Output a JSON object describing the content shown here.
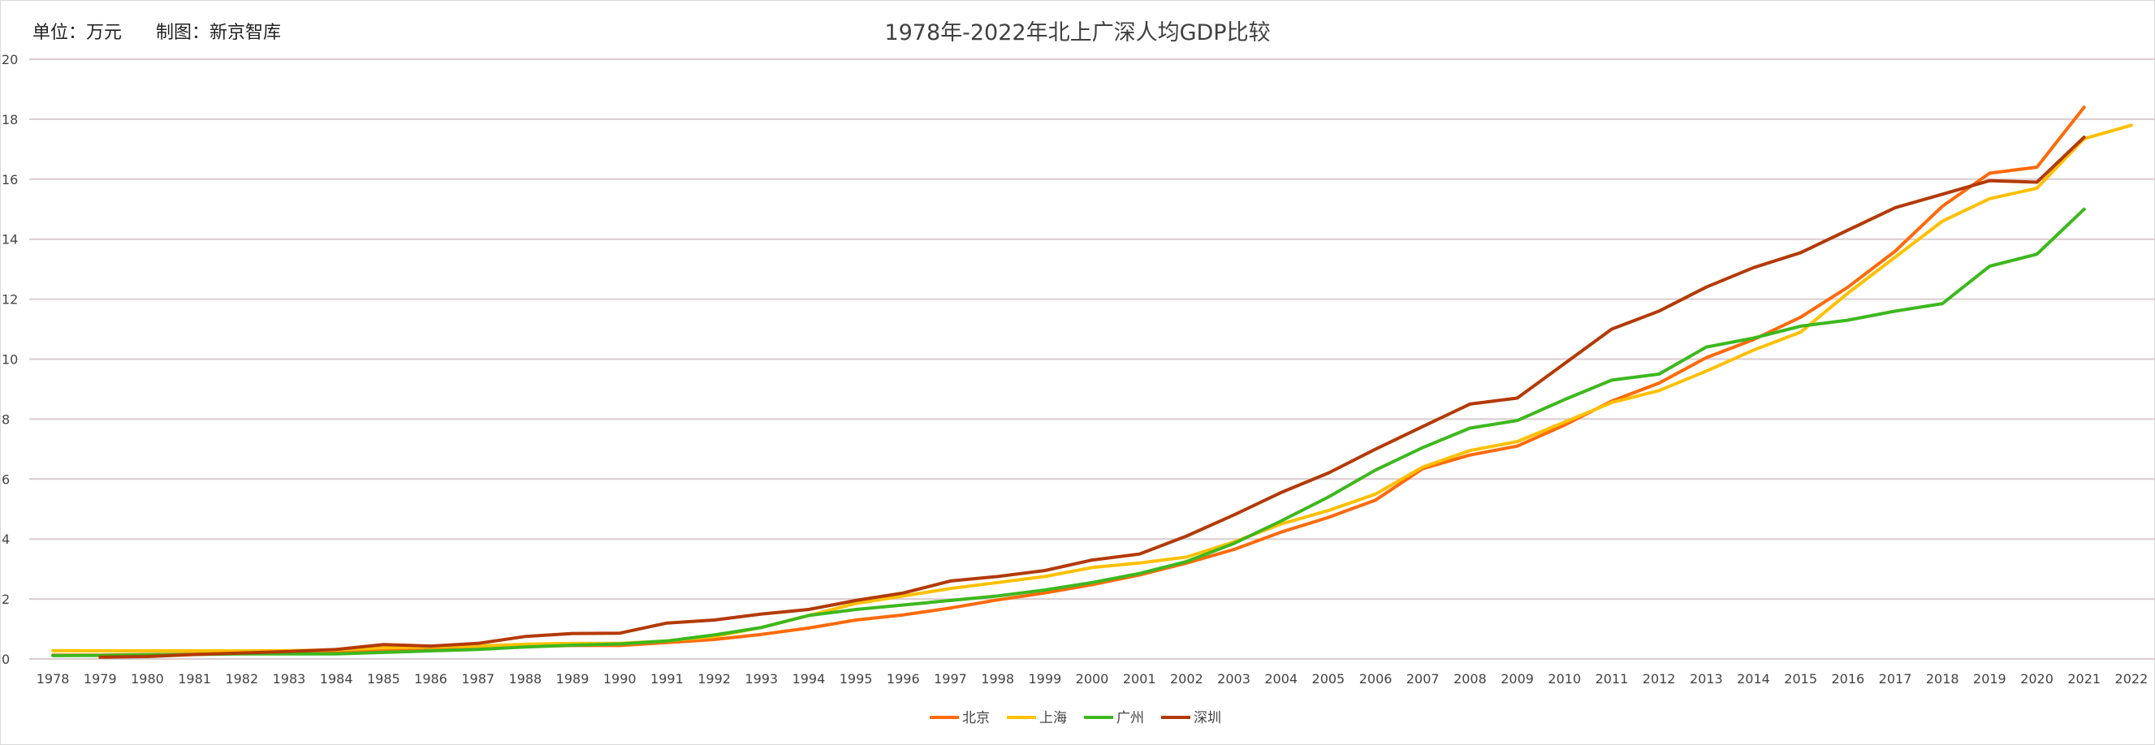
{
  "chart_data": {
    "type": "line",
    "title": "1978年-2022年北上广深人均GDP比较",
    "subtitle": "单位：万元      制图：新京智库",
    "xlabel": "",
    "ylabel": "",
    "ylim": [
      0,
      20
    ],
    "yticks": [
      0,
      2,
      4,
      6,
      8,
      10,
      12,
      14,
      16,
      18,
      20
    ],
    "grid": true,
    "legend": "bottom",
    "categories": [
      "1978",
      "1979",
      "1980",
      "1981",
      "1982",
      "1983",
      "1984",
      "1985",
      "1986",
      "1987",
      "1988",
      "1989",
      "1990",
      "1991",
      "1992",
      "1993",
      "1994",
      "1995",
      "1996",
      "1997",
      "1998",
      "1999",
      "2000",
      "2001",
      "2002",
      "2003",
      "2004",
      "2005",
      "2006",
      "2007",
      "2008",
      "2009",
      "2010",
      "2011",
      "2012",
      "2013",
      "2014",
      "2015",
      "2016",
      "2017",
      "2018",
      "2019",
      "2020",
      "2021",
      "2022"
    ],
    "series": [
      {
        "name": "北京",
        "color": "#FF6A0A",
        "values": [
          0.13,
          0.13,
          0.15,
          0.16,
          0.18,
          0.21,
          0.25,
          0.3,
          0.32,
          0.36,
          0.42,
          0.45,
          0.45,
          0.55,
          0.65,
          0.82,
          1.03,
          1.3,
          1.47,
          1.7,
          1.97,
          2.2,
          2.48,
          2.8,
          3.2,
          3.65,
          4.23,
          4.72,
          5.3,
          6.35,
          6.8,
          7.1,
          7.8,
          8.6,
          9.2,
          10.05,
          10.65,
          11.4,
          12.4,
          13.6,
          15.1,
          16.2,
          16.4,
          18.4,
          null
        ]
      },
      {
        "name": "上海",
        "color": "#FFC000",
        "values": [
          0.28,
          0.27,
          0.27,
          0.27,
          0.27,
          0.28,
          0.3,
          0.37,
          0.4,
          0.43,
          0.49,
          0.52,
          0.52,
          0.6,
          0.75,
          1.05,
          1.45,
          1.85,
          2.1,
          2.35,
          2.55,
          2.75,
          3.05,
          3.2,
          3.4,
          3.9,
          4.5,
          4.95,
          5.5,
          6.4,
          6.95,
          7.25,
          7.9,
          8.55,
          8.95,
          9.6,
          10.3,
          10.9,
          12.2,
          13.4,
          14.6,
          15.35,
          15.7,
          17.35,
          17.8
        ]
      },
      {
        "name": "广州",
        "color": "#3DB81E",
        "values": [
          0.11,
          0.12,
          0.14,
          0.15,
          0.17,
          0.17,
          0.17,
          0.22,
          0.27,
          0.32,
          0.4,
          0.46,
          0.5,
          0.6,
          0.8,
          1.05,
          1.45,
          1.65,
          1.8,
          1.95,
          2.1,
          2.3,
          2.55,
          2.85,
          3.25,
          3.85,
          4.6,
          5.4,
          6.3,
          7.05,
          7.7,
          7.95,
          8.65,
          9.3,
          9.5,
          10.4,
          10.7,
          11.1,
          11.3,
          11.6,
          11.85,
          13.1,
          13.5,
          15.0,
          null
        ]
      },
      {
        "name": "深圳",
        "color": "#B33A05",
        "values": [
          null,
          0.06,
          0.08,
          0.15,
          0.2,
          0.25,
          0.32,
          0.48,
          0.43,
          0.52,
          0.75,
          0.85,
          0.86,
          1.2,
          1.3,
          1.5,
          1.65,
          1.95,
          2.2,
          2.6,
          2.75,
          2.95,
          3.3,
          3.5,
          4.1,
          4.8,
          5.55,
          6.2,
          7.0,
          7.75,
          8.5,
          8.7,
          9.85,
          11.0,
          11.6,
          12.4,
          13.05,
          13.55,
          14.3,
          15.05,
          15.5,
          15.95,
          15.9,
          17.4,
          null
        ]
      }
    ]
  }
}
